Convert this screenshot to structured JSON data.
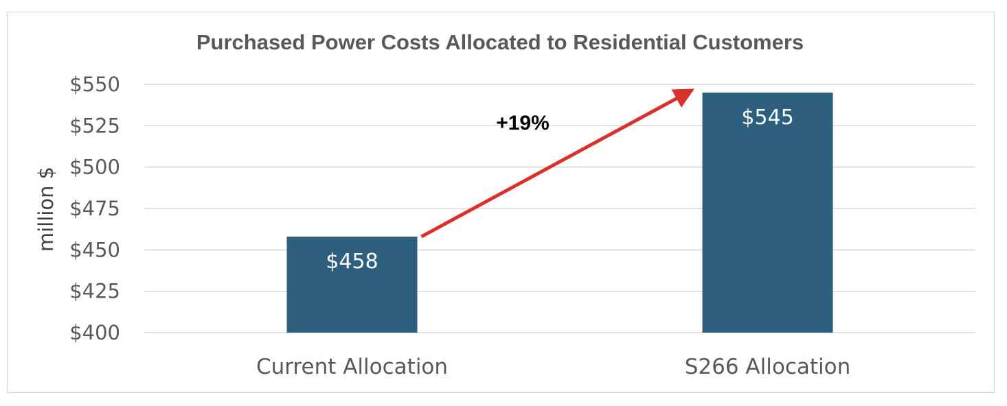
{
  "chart_data": {
    "type": "bar",
    "title": "Purchased Power Costs Allocated to Residential Customers",
    "ylabel": "million $",
    "xlabel": "",
    "categories": [
      "Current Allocation",
      "S266 Allocation"
    ],
    "values": [
      458,
      545
    ],
    "data_labels": [
      "$458",
      "$545"
    ],
    "ylim": [
      400,
      550
    ],
    "yticks": [
      400,
      425,
      450,
      475,
      500,
      525,
      550
    ],
    "ytick_labels": [
      "$400",
      "$425",
      "$450",
      "$475",
      "$500",
      "$525",
      "$550"
    ],
    "grid": true,
    "legend": "none",
    "annotation": {
      "text": "+19%",
      "from_category": "Current Allocation",
      "to_category": "S266 Allocation",
      "color": "#d9312b"
    },
    "bar_color": "#2e5f7f",
    "grid_color": "#d9d9d9"
  }
}
